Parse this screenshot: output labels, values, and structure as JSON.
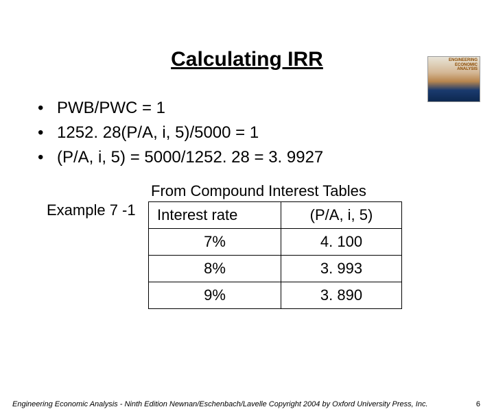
{
  "book_thumb": {
    "line1": "ENGINEERING",
    "line2": "ECONOMIC",
    "line3": "ANALYSIS"
  },
  "title": "Calculating IRR",
  "bullets": [
    "PWB/PWC = 1",
    "1252. 28(P/A, i, 5)/5000 = 1",
    "(P/A, i, 5) = 5000/1252. 28 = 3. 9927"
  ],
  "example_label": "Example 7 -1",
  "table": {
    "title": "From Compound Interest Tables",
    "headers": [
      "Interest rate",
      "(P/A, i, 5)"
    ],
    "rows": [
      [
        "7%",
        "4. 100"
      ],
      [
        "8%",
        "3. 993"
      ],
      [
        "9%",
        "3. 890"
      ]
    ]
  },
  "footer": {
    "text": "Engineering Economic Analysis - Ninth Edition  Newnan/Eschenbach/Lavelle  Copyright 2004 by Oxford University Press, Inc.",
    "page": "6"
  }
}
